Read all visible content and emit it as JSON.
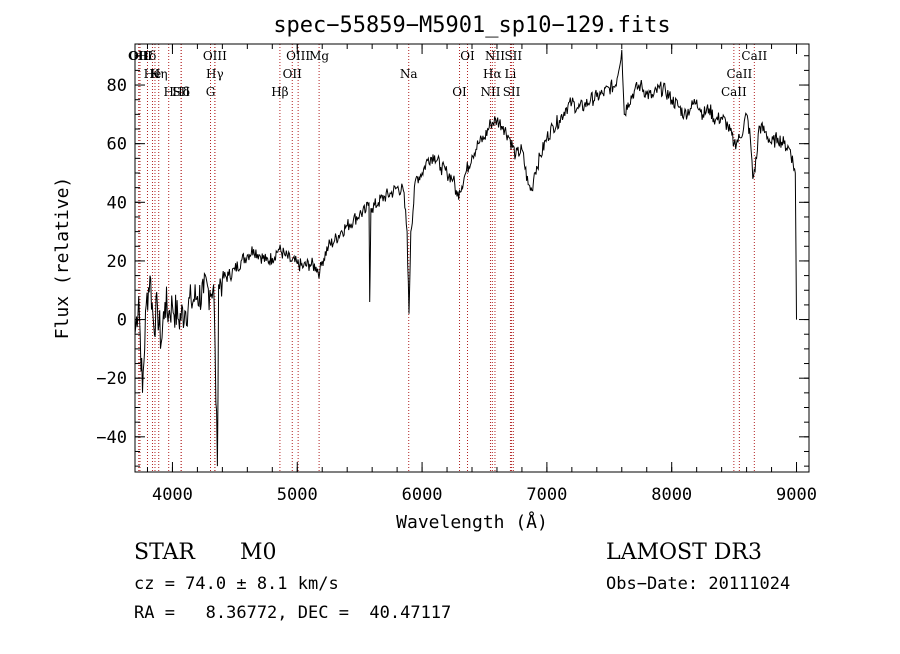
{
  "chart_data": {
    "type": "line",
    "title": "spec−55859−M5901_sp10−129.fits",
    "xlabel": "Wavelength (Å)",
    "ylabel": "Flux (relative)",
    "xlim": [
      3700,
      9100
    ],
    "ylim": [
      -52,
      94
    ],
    "x_ticks": [
      4000,
      5000,
      6000,
      7000,
      8000,
      9000
    ],
    "x_tick_labels": [
      "4000",
      "5000",
      "6000",
      "7000",
      "8000",
      "9000"
    ],
    "y_ticks": [
      -40,
      -20,
      0,
      20,
      40,
      60,
      80
    ],
    "y_tick_labels": [
      "−40",
      "−20",
      "0",
      "20",
      "40",
      "60",
      "80"
    ],
    "series": [
      {
        "name": "flux",
        "color": "#000000",
        "points": [
          [
            3700,
            -5
          ],
          [
            3730,
            8
          ],
          [
            3760,
            -25
          ],
          [
            3790,
            5
          ],
          [
            3820,
            15
          ],
          [
            3850,
            -2
          ],
          [
            3880,
            4
          ],
          [
            3910,
            -8
          ],
          [
            3940,
            6
          ],
          [
            3970,
            2
          ],
          [
            4000,
            5
          ],
          [
            4050,
            0
          ],
          [
            4100,
            3
          ],
          [
            4150,
            6
          ],
          [
            4200,
            8
          ],
          [
            4250,
            9
          ],
          [
            4300,
            10
          ],
          [
            4330,
            12
          ],
          [
            4360,
            -50
          ],
          [
            4370,
            12
          ],
          [
            4400,
            14
          ],
          [
            4450,
            15
          ],
          [
            4500,
            17
          ],
          [
            4550,
            20
          ],
          [
            4600,
            22
          ],
          [
            4650,
            24
          ],
          [
            4700,
            22
          ],
          [
            4750,
            20
          ],
          [
            4800,
            21
          ],
          [
            4850,
            24
          ],
          [
            4900,
            22
          ],
          [
            4950,
            20
          ],
          [
            5000,
            19
          ],
          [
            5050,
            18
          ],
          [
            5100,
            19
          ],
          [
            5150,
            18
          ],
          [
            5180,
            16
          ],
          [
            5200,
            20
          ],
          [
            5250,
            25
          ],
          [
            5300,
            27
          ],
          [
            5350,
            30
          ],
          [
            5400,
            32
          ],
          [
            5450,
            34
          ],
          [
            5500,
            36
          ],
          [
            5550,
            37
          ],
          [
            5575,
            40
          ],
          [
            5580,
            6
          ],
          [
            5590,
            38
          ],
          [
            5600,
            38
          ],
          [
            5650,
            40
          ],
          [
            5700,
            42
          ],
          [
            5750,
            43
          ],
          [
            5800,
            45
          ],
          [
            5850,
            44
          ],
          [
            5880,
            30
          ],
          [
            5895,
            2
          ],
          [
            5910,
            30
          ],
          [
            5950,
            48
          ],
          [
            6000,
            50
          ],
          [
            6050,
            55
          ],
          [
            6100,
            56
          ],
          [
            6150,
            52
          ],
          [
            6200,
            50
          ],
          [
            6250,
            48
          ],
          [
            6280,
            42
          ],
          [
            6300,
            44
          ],
          [
            6350,
            50
          ],
          [
            6400,
            56
          ],
          [
            6450,
            60
          ],
          [
            6500,
            62
          ],
          [
            6550,
            67
          ],
          [
            6600,
            68
          ],
          [
            6650,
            66
          ],
          [
            6700,
            62
          ],
          [
            6750,
            56
          ],
          [
            6800,
            58
          ],
          [
            6850,
            46
          ],
          [
            6880,
            44
          ],
          [
            6900,
            50
          ],
          [
            6950,
            56
          ],
          [
            7000,
            62
          ],
          [
            7050,
            66
          ],
          [
            7100,
            68
          ],
          [
            7150,
            72
          ],
          [
            7200,
            74
          ],
          [
            7250,
            72
          ],
          [
            7300,
            73
          ],
          [
            7350,
            75
          ],
          [
            7400,
            76
          ],
          [
            7450,
            77
          ],
          [
            7500,
            79
          ],
          [
            7550,
            80
          ],
          [
            7600,
            92
          ],
          [
            7620,
            70
          ],
          [
            7650,
            74
          ],
          [
            7700,
            78
          ],
          [
            7750,
            80
          ],
          [
            7800,
            77
          ],
          [
            7850,
            76
          ],
          [
            7900,
            79
          ],
          [
            7950,
            78
          ],
          [
            8000,
            75
          ],
          [
            8050,
            73
          ],
          [
            8100,
            70
          ],
          [
            8150,
            72
          ],
          [
            8200,
            75
          ],
          [
            8250,
            70
          ],
          [
            8300,
            72
          ],
          [
            8350,
            68
          ],
          [
            8400,
            69
          ],
          [
            8450,
            66
          ],
          [
            8500,
            60
          ],
          [
            8550,
            62
          ],
          [
            8600,
            70
          ],
          [
            8630,
            62
          ],
          [
            8650,
            48
          ],
          [
            8680,
            55
          ],
          [
            8700,
            66
          ],
          [
            8750,
            64
          ],
          [
            8800,
            60
          ],
          [
            8850,
            62
          ],
          [
            8900,
            60
          ],
          [
            8950,
            58
          ],
          [
            8990,
            50
          ],
          [
            9000,
            0
          ]
        ]
      }
    ],
    "line_markers": [
      {
        "label": "Hδ",
        "x": 3800
      },
      {
        "label": "K",
        "x": 3860
      },
      {
        "label": "Hδ",
        "x": 4070
      },
      {
        "label": "OII",
        "x": 3730
      },
      {
        "label": "He",
        "x": 3840
      },
      {
        "label": "SII",
        "x": 4070
      },
      {
        "label": "OIII",
        "x": 3740
      },
      {
        "label": "Hη",
        "x": 3890
      },
      {
        "label": "H",
        "x": 3970
      },
      {
        "label": "OIII",
        "x": 4340
      },
      {
        "label": "Hγ",
        "x": 4340
      },
      {
        "label": "G",
        "x": 4305
      },
      {
        "label": "OIII",
        "x": 5007
      },
      {
        "label": "OII",
        "x": 4960
      },
      {
        "label": "Hβ",
        "x": 4861
      },
      {
        "label": "Mg",
        "x": 5175
      },
      {
        "label": "Na",
        "x": 5893
      },
      {
        "label": "OI",
        "x": 6300
      },
      {
        "label": "OI",
        "x": 6364
      },
      {
        "label": "Hα",
        "x": 6563
      },
      {
        "label": "SII",
        "x": 6717
      },
      {
        "label": "NII",
        "x": 6584
      },
      {
        "label": "Li",
        "x": 6708
      },
      {
        "label": "NII",
        "x": 6548
      },
      {
        "label": "SII",
        "x": 6731
      },
      {
        "label": "CaII",
        "x": 8542
      },
      {
        "label": "CaII",
        "x": 8498
      },
      {
        "label": "CaII",
        "x": 8662
      }
    ],
    "marker_color": "#b22222"
  },
  "info": {
    "object_class": "STAR",
    "subclass": "M0",
    "survey": "LAMOST DR3",
    "cz_line": "cz = 74.0 ± 8.1 km/s",
    "obs_date_line": "Obs−Date: 20111024",
    "radec_line": "RA =   8.36772, DEC =  40.47117"
  }
}
